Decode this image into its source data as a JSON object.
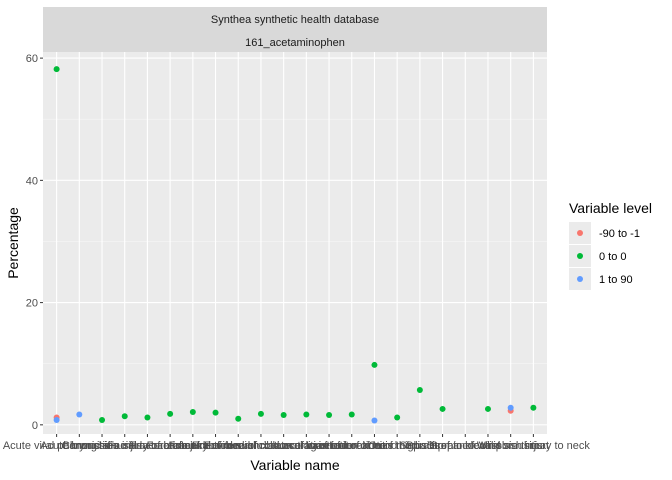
{
  "chart_data": {
    "type": "scatter",
    "facet": {
      "line1": "Synthea synthetic health database",
      "line2": "161_acetaminophen"
    },
    "xlabel": "Variable name",
    "ylabel": "Percentage",
    "ylim": [
      -1.5,
      61
    ],
    "yticks": [
      0,
      20,
      40,
      60
    ],
    "grid": true,
    "legend": {
      "title": "Variable level",
      "position": "right"
    },
    "categories": [
      "Acute viral pharyngitis",
      "Acute bronchitis",
      "Chronic sinusitis",
      "Concussion injury of brain",
      "Facial laceration",
      "Fracture of ankle",
      "Fracture of clavicle",
      "Fracture of forearm",
      "Fracture of rib",
      "Fracture subluxation of wrist",
      "Injury of medial collateral ligament of knee",
      "Laceration of foot",
      "Laceration of forearm",
      "Laceration of hand",
      "Laceration of thigh",
      "Otitis media",
      "Sinusitis",
      "Sprain of ankle",
      "Sprain of wrist",
      "Streptococcal sore throat",
      "Viral sinusitis",
      "Whiplash injury to neck"
    ],
    "series": [
      {
        "name": "-90 to -1",
        "color": "#F8766D",
        "points": [
          {
            "x": "Acute viral pharyngitis",
            "y": 1.2
          },
          {
            "x": "Viral sinusitis",
            "y": 2.3
          }
        ]
      },
      {
        "name": "0 to 0",
        "color": "#00BA38",
        "points": [
          {
            "x": "Acute viral pharyngitis",
            "y": 58.2
          },
          {
            "x": "Chronic sinusitis",
            "y": 0.8
          },
          {
            "x": "Concussion injury of brain",
            "y": 1.4
          },
          {
            "x": "Facial laceration",
            "y": 1.2
          },
          {
            "x": "Fracture of ankle",
            "y": 1.8
          },
          {
            "x": "Fracture of clavicle",
            "y": 2.1
          },
          {
            "x": "Fracture of forearm",
            "y": 2.0
          },
          {
            "x": "Fracture of rib",
            "y": 1.0
          },
          {
            "x": "Fracture subluxation of wrist",
            "y": 1.8
          },
          {
            "x": "Injury of medial collateral ligament of knee",
            "y": 1.6
          },
          {
            "x": "Laceration of foot",
            "y": 1.7
          },
          {
            "x": "Laceration of forearm",
            "y": 1.6
          },
          {
            "x": "Laceration of hand",
            "y": 1.7
          },
          {
            "x": "Laceration of thigh",
            "y": 9.8
          },
          {
            "x": "Otitis media",
            "y": 1.2
          },
          {
            "x": "Sinusitis",
            "y": 5.7
          },
          {
            "x": "Sprain of ankle",
            "y": 2.6
          },
          {
            "x": "Streptococcal sore throat",
            "y": 2.6
          },
          {
            "x": "Whiplash injury to neck",
            "y": 2.8
          }
        ]
      },
      {
        "name": "1 to 90",
        "color": "#619CFF",
        "points": [
          {
            "x": "Acute viral pharyngitis",
            "y": 0.8
          },
          {
            "x": "Acute bronchitis",
            "y": 1.7
          },
          {
            "x": "Laceration of thigh",
            "y": 0.7
          },
          {
            "x": "Viral sinusitis",
            "y": 2.8
          }
        ]
      }
    ]
  }
}
